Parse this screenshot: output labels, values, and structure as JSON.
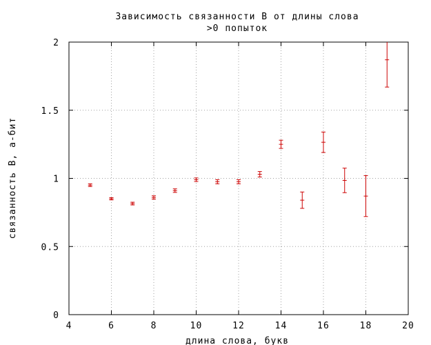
{
  "chart_data": {
    "type": "scatter",
    "title": "Зависимость связанности B от длины слова",
    "subtitle": ">0 попыток",
    "xlabel": "длина слова, букв",
    "ylabel": "связанность B, а-бит",
    "xlim": [
      4,
      20
    ],
    "ylim": [
      0,
      2
    ],
    "x_ticks": [
      4,
      6,
      8,
      10,
      12,
      14,
      16,
      18,
      20
    ],
    "y_ticks": [
      0,
      0.5,
      1,
      1.5,
      2
    ],
    "x_tick_labels": [
      "4",
      "6",
      "8",
      "10",
      "12",
      "14",
      "16",
      "18",
      "20"
    ],
    "y_tick_labels": [
      "0",
      "0.5",
      "1",
      "1.5",
      "2"
    ],
    "grid": true,
    "error_bars": true,
    "color": "#cc0000",
    "series": [
      {
        "points": [
          {
            "x": 5,
            "y": 0.95,
            "err": 0.01
          },
          {
            "x": 6,
            "y": 0.85,
            "err": 0.008
          },
          {
            "x": 7,
            "y": 0.815,
            "err": 0.01
          },
          {
            "x": 8,
            "y": 0.86,
            "err": 0.012
          },
          {
            "x": 9,
            "y": 0.91,
            "err": 0.013
          },
          {
            "x": 10,
            "y": 0.99,
            "err": 0.013
          },
          {
            "x": 11,
            "y": 0.975,
            "err": 0.015
          },
          {
            "x": 12,
            "y": 0.975,
            "err": 0.015
          },
          {
            "x": 13,
            "y": 1.03,
            "err": 0.02
          },
          {
            "x": 14,
            "y": 1.25,
            "err": 0.03
          },
          {
            "x": 15,
            "y": 0.84,
            "err": 0.06
          },
          {
            "x": 16,
            "y": 1.265,
            "err": 0.075
          },
          {
            "x": 17,
            "y": 0.985,
            "err": 0.09
          },
          {
            "x": 18,
            "y": 0.87,
            "err": 0.15
          },
          {
            "x": 19,
            "y": 1.87,
            "err": 0.2
          }
        ]
      }
    ]
  }
}
